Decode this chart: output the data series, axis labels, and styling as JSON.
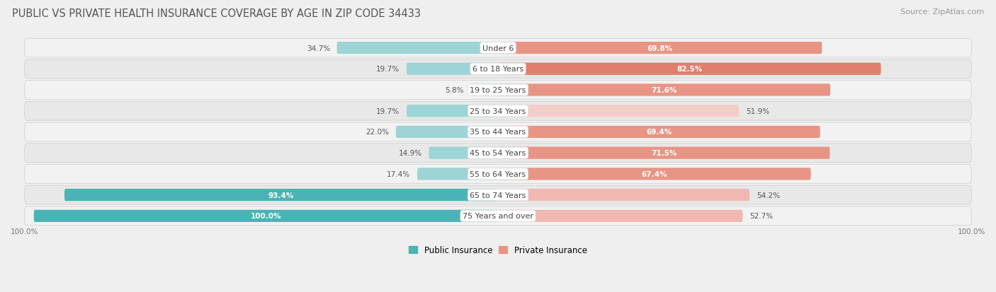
{
  "title": "PUBLIC VS PRIVATE HEALTH INSURANCE COVERAGE BY AGE IN ZIP CODE 34433",
  "source": "Source: ZipAtlas.com",
  "categories": [
    "Under 6",
    "6 to 18 Years",
    "19 to 25 Years",
    "25 to 34 Years",
    "35 to 44 Years",
    "45 to 54 Years",
    "55 to 64 Years",
    "65 to 74 Years",
    "75 Years and over"
  ],
  "public_values": [
    34.7,
    19.7,
    5.8,
    19.7,
    22.0,
    14.9,
    17.4,
    93.4,
    100.0
  ],
  "private_values": [
    69.8,
    82.5,
    71.6,
    51.9,
    69.4,
    71.5,
    67.4,
    54.2,
    52.7
  ],
  "public_color_dark": "#4ab3b5",
  "public_color_light": "#9dd4d5",
  "private_color_dark": "#e07f6e",
  "private_color_med": "#e89585",
  "private_color_light": "#f0b8b0",
  "private_color_verylight": "#f5cdc8",
  "row_bg_even": "#f2f2f2",
  "row_bg_odd": "#e8e8e8",
  "fig_bg": "#efefef",
  "title_color": "#555555",
  "label_color": "#555555",
  "white": "#ffffff",
  "title_fontsize": 10.5,
  "source_fontsize": 8,
  "cat_fontsize": 8,
  "val_fontsize": 7.5,
  "bar_height": 0.58,
  "xlim_left": -105,
  "xlim_right": 105
}
